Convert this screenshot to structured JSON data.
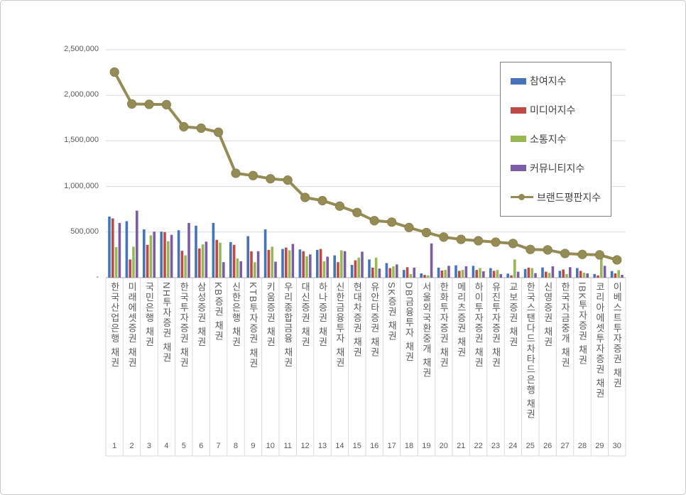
{
  "chart_data": {
    "type": "combo-bar-line",
    "title": "",
    "categories": [
      "한국산업은행 채권",
      "미래에셋증권 채권",
      "국민은행 채권",
      "NH투자증권 채권",
      "한국투자증권 채권",
      "삼성증권 채권",
      "KB증권 채권",
      "신한은행 채권",
      "KTB투자증권 채권",
      "키움증권 채권",
      "우리종합금융 채권",
      "대신증권 채권",
      "하나증권 채권",
      "신한금융투자 채권",
      "현대차증권 채권",
      "유안타증권 채권",
      "SK증권 채권",
      "DB금융투자 채권",
      "서울외국환중개 채권",
      "한화투자증권 채권",
      "메리츠증권 채권",
      "하이투자증권 채권",
      "유진투자증권 채권",
      "교보증권 채권",
      "한국스탠다드차타드은행 채권",
      "신영증권 채권",
      "한국자금중개 채권",
      "IBK투자증권 채권",
      "코리아에셋투자증권 채권",
      "이베스트투자증권 채권"
    ],
    "ranks": [
      1,
      2,
      3,
      4,
      5,
      6,
      7,
      8,
      9,
      10,
      11,
      12,
      13,
      14,
      15,
      16,
      17,
      18,
      19,
      20,
      21,
      22,
      23,
      24,
      25,
      26,
      27,
      28,
      29,
      30
    ],
    "series": [
      {
        "name": "참여지수",
        "type": "bar",
        "color": "#4674b8",
        "values": [
          670000,
          620000,
          530000,
          505000,
          520000,
          570000,
          600000,
          390000,
          455000,
          530000,
          315000,
          310000,
          305000,
          245000,
          140000,
          200000,
          160000,
          85000,
          47000,
          110000,
          135000,
          130000,
          105000,
          45000,
          95000,
          112000,
          75000,
          105000,
          40000,
          73000
        ]
      },
      {
        "name": "미디어지수",
        "type": "bar",
        "color": "#be4a46",
        "values": [
          650000,
          200000,
          360000,
          500000,
          295000,
          320000,
          415000,
          360000,
          290000,
          305000,
          330000,
          290000,
          315000,
          170000,
          190000,
          110000,
          105000,
          115000,
          30000,
          78000,
          75000,
          85000,
          75000,
          25000,
          110000,
          65000,
          90000,
          75000,
          25000,
          47000
        ]
      },
      {
        "name": "소통지수",
        "type": "bar",
        "color": "#97b854",
        "values": [
          335000,
          340000,
          465000,
          400000,
          245000,
          365000,
          385000,
          210000,
          170000,
          340000,
          300000,
          235000,
          180000,
          300000,
          220000,
          220000,
          125000,
          40000,
          25000,
          85000,
          85000,
          105000,
          85000,
          200000,
          105000,
          52000,
          40000,
          55000,
          210000,
          83000
        ]
      },
      {
        "name": "커뮤니티지수",
        "type": "bar",
        "color": "#7b5da6",
        "values": [
          600000,
          735000,
          505000,
          470000,
          600000,
          395000,
          170000,
          180000,
          290000,
          175000,
          370000,
          255000,
          230000,
          290000,
          285000,
          100000,
          145000,
          110000,
          375000,
          130000,
          125000,
          70000,
          40000,
          65000,
          50000,
          125000,
          115000,
          47000,
          130000,
          31000
        ]
      },
      {
        "name": "브랜드평판지수",
        "type": "line",
        "color": "#958b55",
        "values": [
          2255000,
          1905000,
          1901000,
          1898000,
          1655000,
          1640000,
          1595000,
          1145000,
          1120000,
          1085000,
          1070000,
          880000,
          845000,
          785000,
          715000,
          625000,
          610000,
          550000,
          495000,
          445000,
          420000,
          405000,
          390000,
          375000,
          310000,
          305000,
          265000,
          255000,
          250000,
          195000
        ]
      }
    ],
    "y_axis": {
      "min": 0,
      "max": 2500000,
      "step": 500000,
      "ticks": [
        {
          "label": "2,500,000",
          "value": 2500000
        },
        {
          "label": "2,000,000",
          "value": 2000000
        },
        {
          "label": "1,500,000",
          "value": 1500000
        },
        {
          "label": "1,000,000",
          "value": 1000000
        },
        {
          "label": "500,000",
          "value": 500000
        },
        {
          "label": "-",
          "value": 0
        }
      ]
    },
    "grid": true,
    "legend_position": "top-right"
  }
}
